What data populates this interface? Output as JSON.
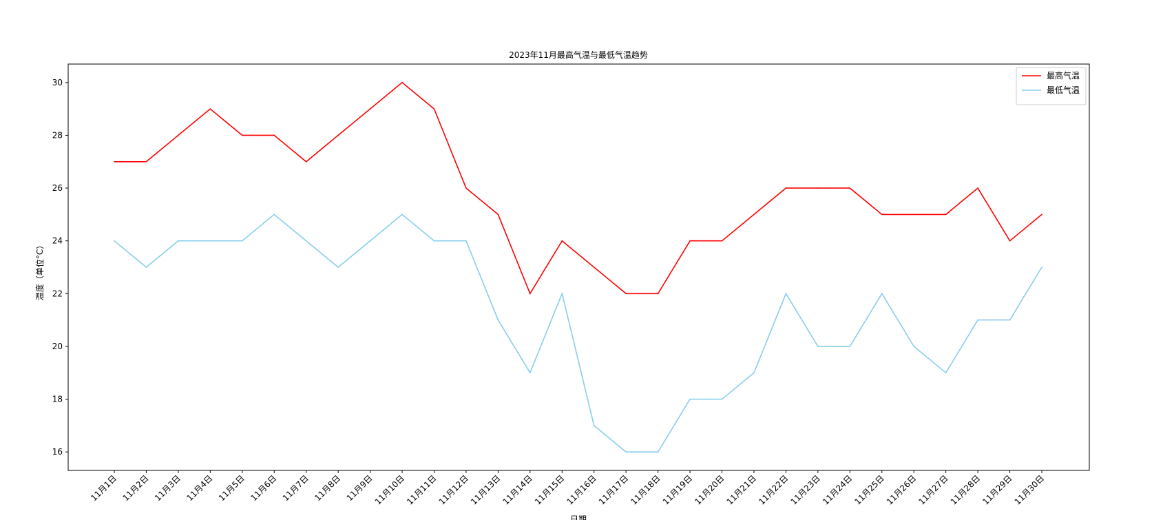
{
  "chart_data": {
    "type": "line",
    "title": "2023年11月最高气温与最低气温趋势",
    "xlabel": "日期",
    "ylabel": "温度（单位°C）",
    "ylim": [
      15.3,
      30.7
    ],
    "yticks": [
      16,
      18,
      20,
      22,
      24,
      26,
      28,
      30
    ],
    "grid": false,
    "legend_position": "top-right",
    "categories": [
      "11月1日",
      "11月2日",
      "11月3日",
      "11月4日",
      "11月5日",
      "11月6日",
      "11月7日",
      "11月8日",
      "11月9日",
      "11月10日",
      "11月11日",
      "11月12日",
      "11月13日",
      "11月14日",
      "11月15日",
      "11月16日",
      "11月17日",
      "11月18日",
      "11月19日",
      "11月20日",
      "11月21日",
      "11月22日",
      "11月23日",
      "11月24日",
      "11月25日",
      "11月26日",
      "11月27日",
      "11月28日",
      "11月29日",
      "11月30日"
    ],
    "series": [
      {
        "name": "最高气温",
        "color": "#ff0000",
        "values": [
          27,
          27,
          28,
          29,
          28,
          28,
          27,
          28,
          29,
          30,
          29,
          26,
          25,
          22,
          24,
          23,
          22,
          22,
          24,
          24,
          25,
          26,
          26,
          26,
          25,
          25,
          25,
          26,
          24,
          25
        ]
      },
      {
        "name": "最低气温",
        "color": "#87ceeb",
        "values": [
          24,
          23,
          24,
          24,
          24,
          25,
          24,
          23,
          24,
          25,
          24,
          24,
          21,
          19,
          22,
          17,
          16,
          16,
          18,
          18,
          19,
          22,
          20,
          20,
          22,
          20,
          19,
          21,
          21,
          23
        ]
      }
    ]
  }
}
